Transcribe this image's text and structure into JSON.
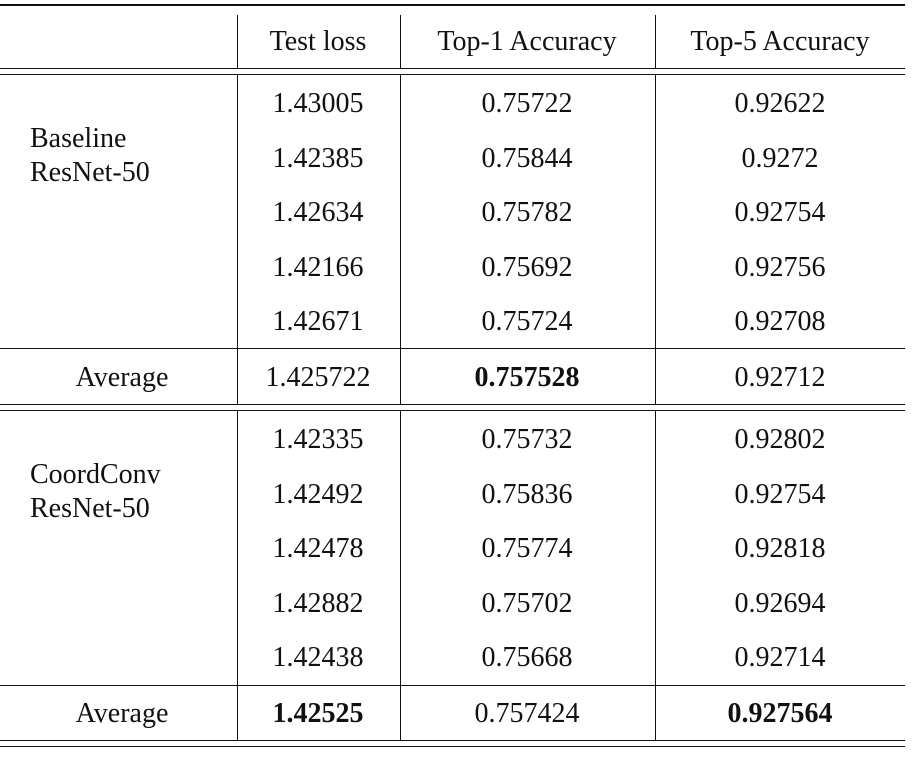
{
  "table": {
    "header": [
      "Test loss",
      "Top-1 Accuracy",
      "Top-5 Accuracy"
    ],
    "groups": [
      {
        "label": "Baseline\nResNet-50",
        "rows": [
          [
            "1.43005",
            "0.75722",
            "0.92622"
          ],
          [
            "1.42385",
            "0.75844",
            "0.9272"
          ],
          [
            "1.42634",
            "0.75782",
            "0.92754"
          ],
          [
            "1.42166",
            "0.75692",
            "0.92756"
          ],
          [
            "1.42671",
            "0.75724",
            "0.92708"
          ]
        ],
        "average": {
          "label": "Average",
          "values": [
            "1.425722",
            "0.757528",
            "0.92712"
          ],
          "bold": [
            false,
            true,
            false
          ]
        }
      },
      {
        "label": "CoordConv\nResNet-50",
        "rows": [
          [
            "1.42335",
            "0.75732",
            "0.92802"
          ],
          [
            "1.42492",
            "0.75836",
            "0.92754"
          ],
          [
            "1.42478",
            "0.75774",
            "0.92818"
          ],
          [
            "1.42882",
            "0.75702",
            "0.92694"
          ],
          [
            "1.42438",
            "0.75668",
            "0.92714"
          ]
        ],
        "average": {
          "label": "Average",
          "values": [
            "1.42525",
            "0.757424",
            "0.927564"
          ],
          "bold": [
            true,
            false,
            true
          ]
        }
      }
    ]
  }
}
